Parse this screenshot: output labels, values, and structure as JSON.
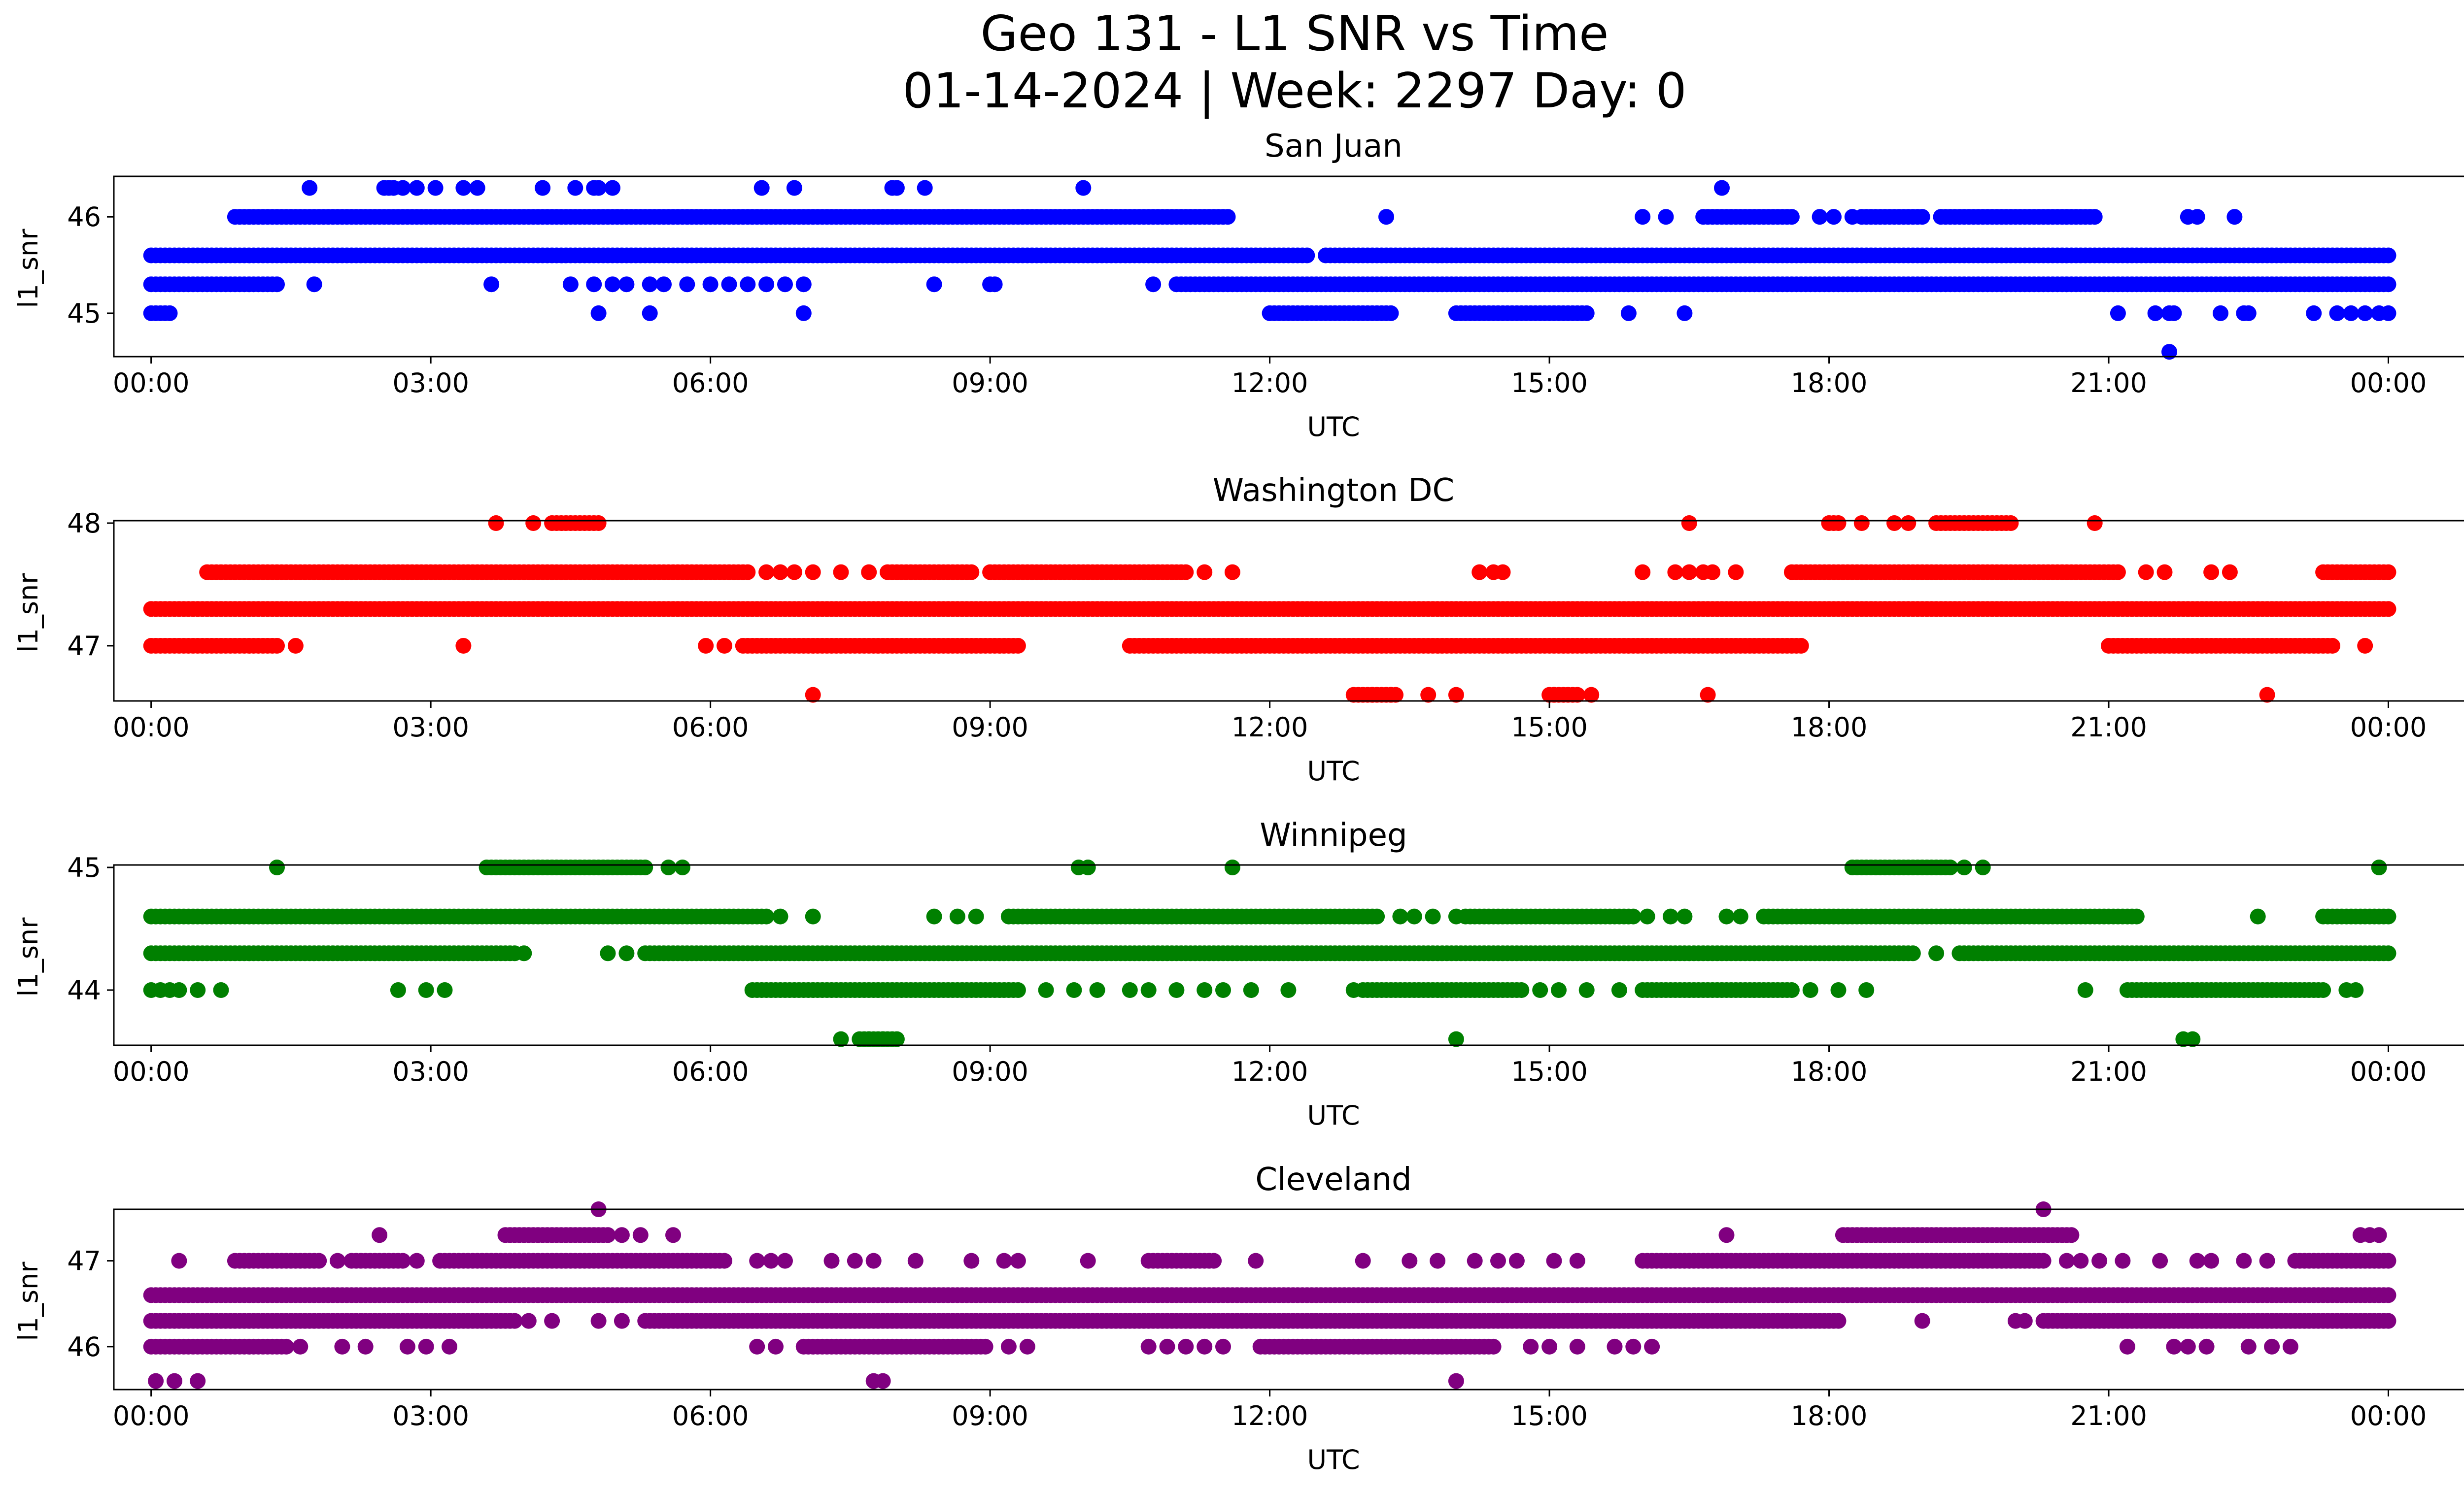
{
  "figure": {
    "title_line1": "Geo 131 - L1 SNR vs Time",
    "title_line2": "01-14-2024 | Week: 2297 Day: 0"
  },
  "chart_data": [
    {
      "type": "scatter",
      "title": "San Juan",
      "xlabel": "UTC",
      "ylabel": "l1_snr",
      "color": "#0000ff",
      "xlim_hours": [
        -0.4,
        25.8
      ],
      "ylim": [
        44.55,
        46.42
      ],
      "yticks": [
        45,
        46
      ],
      "ytick_labels": [
        "45",
        "46"
      ],
      "xticks": [
        "00:00",
        "03:00",
        "06:00",
        "09:00",
        "12:00",
        "15:00",
        "18:00",
        "21:00",
        "00:00"
      ],
      "levels": [
        {
          "y": 44.6,
          "ranges": [],
          "points": [
            21.65
          ]
        },
        {
          "y": 45.0,
          "ranges": [
            [
              0.0,
              0.2
            ],
            [
              12.0,
              13.3
            ],
            [
              14.0,
              15.4
            ]
          ],
          "points": [
            4.8,
            5.35,
            7.0,
            15.85,
            16.45,
            21.1,
            21.5,
            21.65,
            21.7,
            22.2,
            22.45,
            22.5,
            23.2,
            23.45,
            23.6,
            23.75,
            23.9,
            24.0
          ]
        },
        {
          "y": 45.3,
          "ranges": [
            [
              0.0,
              1.35
            ],
            [
              11.0,
              24.0
            ]
          ],
          "points": [
            1.75,
            3.65,
            4.5,
            4.75,
            4.95,
            5.1,
            5.35,
            5.5,
            5.75,
            6.0,
            6.2,
            6.4,
            6.6,
            6.8,
            7.0,
            8.4,
            9.0,
            9.05,
            10.75
          ]
        },
        {
          "y": 45.6,
          "ranges": [
            [
              0.0,
              12.4
            ],
            [
              12.6,
              24.0
            ]
          ],
          "points": []
        },
        {
          "y": 46.0,
          "ranges": [
            [
              0.9,
              11.55
            ],
            [
              16.65,
              17.6
            ],
            [
              18.35,
              19.0
            ],
            [
              19.2,
              20.85
            ]
          ],
          "points": [
            13.25,
            16.0,
            16.25,
            17.9,
            18.05,
            18.25,
            21.85,
            21.95,
            22.35
          ]
        },
        {
          "y": 46.3,
          "ranges": [],
          "points": [
            1.7,
            2.5,
            2.55,
            2.6,
            2.7,
            2.85,
            3.05,
            3.35,
            3.5,
            4.2,
            4.55,
            4.75,
            4.8,
            4.95,
            6.55,
            6.9,
            7.95,
            8.0,
            8.3,
            10.0,
            16.85
          ]
        }
      ]
    },
    {
      "type": "scatter",
      "title": "Washington DC",
      "xlabel": "UTC",
      "ylabel": "l1_snr",
      "color": "#ff0000",
      "xlim_hours": [
        -0.4,
        25.8
      ],
      "ylim": [
        46.55,
        48.02
      ],
      "yticks": [
        47,
        48
      ],
      "ytick_labels": [
        "47",
        "48"
      ],
      "xticks": [
        "00:00",
        "03:00",
        "06:00",
        "09:00",
        "12:00",
        "15:00",
        "18:00",
        "21:00",
        "00:00"
      ],
      "levels": [
        {
          "y": 46.6,
          "ranges": [
            [
              12.9,
              13.35
            ],
            [
              15.0,
              15.3
            ]
          ],
          "points": [
            7.1,
            13.1,
            13.3,
            13.7,
            14.0,
            15.05,
            15.45,
            16.7,
            22.7
          ]
        },
        {
          "y": 47.0,
          "ranges": [
            [
              0.0,
              1.35
            ],
            [
              6.4,
              9.3
            ],
            [
              10.5,
              17.7
            ],
            [
              21.0,
              23.4
            ]
          ],
          "points": [
            1.55,
            3.35,
            5.95,
            6.15,
            6.35,
            23.75
          ]
        },
        {
          "y": 47.3,
          "ranges": [
            [
              0.0,
              24.0
            ]
          ],
          "points": []
        },
        {
          "y": 47.6,
          "ranges": [
            [
              0.6,
              6.4
            ],
            [
              7.9,
              8.8
            ],
            [
              9.0,
              11.1
            ],
            [
              17.6,
              21.1
            ],
            [
              23.3,
              24.0
            ]
          ],
          "points": [
            6.6,
            6.75,
            6.9,
            7.1,
            7.4,
            7.7,
            11.3,
            11.6,
            14.25,
            14.4,
            14.5,
            16.0,
            16.35,
            16.5,
            16.65,
            16.75,
            17.0,
            21.4,
            21.6,
            22.1,
            22.3
          ]
        },
        {
          "y": 48.0,
          "ranges": [
            [
              4.3,
              4.8
            ],
            [
              19.15,
              19.95
            ],
            [
              18.0,
              18.1
            ]
          ],
          "points": [
            3.7,
            4.1,
            16.5,
            18.35,
            18.7,
            18.85,
            20.85
          ]
        }
      ]
    },
    {
      "type": "scatter",
      "title": "Winnipeg",
      "xlabel": "UTC",
      "ylabel": "l1_snr",
      "color": "#008000",
      "xlim_hours": [
        -0.4,
        25.8
      ],
      "ylim": [
        43.55,
        45.02
      ],
      "yticks": [
        44,
        45
      ],
      "ytick_labels": [
        "44",
        "45"
      ],
      "xticks": [
        "00:00",
        "03:00",
        "06:00",
        "09:00",
        "12:00",
        "15:00",
        "18:00",
        "21:00",
        "00:00"
      ],
      "levels": [
        {
          "y": 43.6,
          "ranges": [
            [
              7.6,
              8.0
            ]
          ],
          "points": [
            7.4,
            7.7,
            7.85,
            14.0,
            21.8,
            21.9
          ]
        },
        {
          "y": 44.0,
          "ranges": [
            [
              6.45,
              9.3
            ],
            [
              13.0,
              14.7
            ],
            [
              16.0,
              17.6
            ],
            [
              21.2,
              23.3
            ]
          ],
          "points": [
            0.0,
            0.1,
            0.2,
            0.3,
            0.5,
            0.75,
            2.65,
            2.95,
            3.15,
            9.6,
            9.9,
            10.15,
            10.5,
            10.7,
            11.0,
            11.3,
            11.5,
            11.8,
            12.2,
            12.9,
            14.9,
            15.1,
            15.4,
            15.75,
            17.8,
            18.1,
            18.4,
            20.75,
            23.55,
            23.65
          ]
        },
        {
          "y": 44.3,
          "ranges": [
            [
              0.0,
              3.9
            ],
            [
              5.3,
              18.9
            ],
            [
              19.4,
              24.0
            ]
          ],
          "points": [
            4.0,
            4.9,
            5.1,
            19.15
          ]
        },
        {
          "y": 44.6,
          "ranges": [
            [
              0.0,
              6.6
            ],
            [
              9.2,
              13.15
            ],
            [
              14.1,
              15.9
            ],
            [
              17.3,
              21.3
            ],
            [
              23.3,
              24.0
            ]
          ],
          "points": [
            6.75,
            7.1,
            8.4,
            8.65,
            8.85,
            13.4,
            13.55,
            13.75,
            14.0,
            16.05,
            16.3,
            16.45,
            16.9,
            17.05,
            22.6
          ]
        },
        {
          "y": 45.0,
          "ranges": [
            [
              3.6,
              5.3
            ],
            [
              18.25,
              19.3
            ]
          ],
          "points": [
            1.35,
            5.55,
            5.7,
            9.95,
            10.05,
            11.6,
            19.45,
            19.65,
            23.9
          ]
        }
      ]
    },
    {
      "type": "scatter",
      "title": "Cleveland",
      "xlabel": "UTC",
      "ylabel": "l1_snr",
      "color": "#800080",
      "xlim_hours": [
        -0.4,
        25.8
      ],
      "ylim": [
        45.5,
        47.6
      ],
      "yticks": [
        46,
        47
      ],
      "ytick_labels": [
        "46",
        "47"
      ],
      "xticks": [
        "00:00",
        "03:00",
        "06:00",
        "09:00",
        "12:00",
        "15:00",
        "18:00",
        "21:00",
        "00:00"
      ],
      "levels": [
        {
          "y": 45.6,
          "ranges": [],
          "points": [
            0.05,
            0.25,
            0.5,
            7.75,
            7.85,
            14.0
          ]
        },
        {
          "y": 46.0,
          "ranges": [
            [
              0.0,
              1.45
            ],
            [
              7.0,
              8.95
            ],
            [
              11.9,
              14.4
            ]
          ],
          "points": [
            1.6,
            2.05,
            2.3,
            2.75,
            2.95,
            3.2,
            6.5,
            6.7,
            9.2,
            9.4,
            10.7,
            10.9,
            11.1,
            11.3,
            11.5,
            14.8,
            15.0,
            15.3,
            15.7,
            15.9,
            16.1,
            21.2,
            21.7,
            21.85,
            22.05,
            22.5,
            22.75,
            22.95
          ]
        },
        {
          "y": 46.3,
          "ranges": [
            [
              0.0,
              3.9
            ],
            [
              5.3,
              18.1
            ],
            [
              20.3,
              24.0
            ]
          ],
          "points": [
            4.05,
            4.3,
            4.8,
            5.05,
            19.0,
            20.0,
            20.1
          ]
        },
        {
          "y": 46.6,
          "ranges": [
            [
              0.0,
              24.0
            ]
          ],
          "points": []
        },
        {
          "y": 47.0,
          "ranges": [
            [
              0.9,
              1.8
            ],
            [
              2.15,
              2.7
            ],
            [
              3.1,
              6.15
            ],
            [
              10.7,
              11.4
            ],
            [
              16.0,
              20.3
            ],
            [
              23.0,
              24.0
            ]
          ],
          "points": [
            0.3,
            2.0,
            2.85,
            6.5,
            6.65,
            6.8,
            7.3,
            7.55,
            7.75,
            8.2,
            8.8,
            9.15,
            9.3,
            10.05,
            11.85,
            13.0,
            13.5,
            13.8,
            14.2,
            14.45,
            14.65,
            15.05,
            15.3,
            20.55,
            20.7,
            20.9,
            21.15,
            21.55,
            21.95,
            22.1,
            22.45,
            22.7
          ]
        },
        {
          "y": 47.3,
          "ranges": [
            [
              3.8,
              4.9
            ],
            [
              18.15,
              20.6
            ]
          ],
          "points": [
            2.45,
            5.05,
            5.25,
            5.6,
            16.9,
            23.7,
            23.8,
            23.9
          ]
        },
        {
          "y": 47.6,
          "ranges": [],
          "points": [
            4.8,
            20.3
          ]
        }
      ]
    }
  ]
}
